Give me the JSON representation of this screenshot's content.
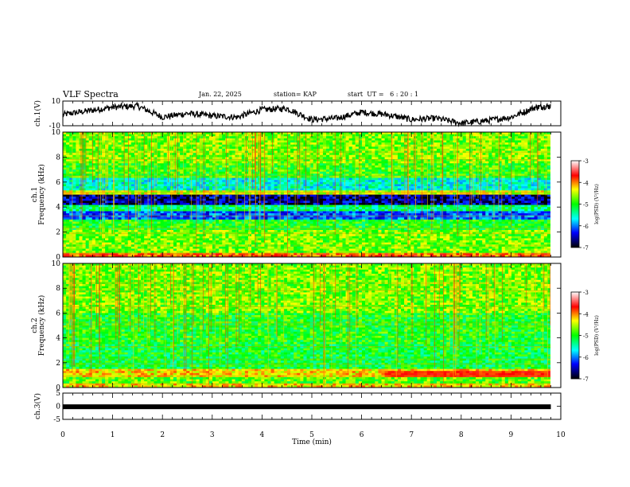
{
  "header": {
    "title": "VLF Spectra",
    "date": "Jan. 22, 2025",
    "station": "station= KAP",
    "start_ut": "start  UT =   6 : 20 : 1"
  },
  "colorbar": {
    "label": "log(PSD) (V²/Hz)",
    "ticks": [
      "-3",
      "-4",
      "-5",
      "-6",
      "-7"
    ],
    "colors": [
      "#ffffff",
      "#ff0000",
      "#ffff00",
      "#00ff00",
      "#00ffff",
      "#0000ff",
      "#000000"
    ]
  },
  "chart_data": [
    {
      "type": "line",
      "name": "ch1-waveform",
      "ylabel": "ch.1(V)",
      "ylim": [
        -10,
        10
      ],
      "yticks": [
        "10",
        "-10"
      ],
      "x": [
        0,
        0.5,
        1,
        1.5,
        2,
        2.5,
        3,
        3.5,
        4,
        4.5,
        5,
        5.5,
        6,
        6.5,
        7,
        7.5,
        8,
        8.5,
        9,
        9.5,
        9.8
      ],
      "values": [
        -1,
        2,
        5,
        6,
        -3,
        0,
        -2,
        -3,
        3,
        4,
        -5,
        -4,
        1,
        -1,
        -5,
        -4,
        -8,
        -6,
        -3,
        5,
        6
      ]
    },
    {
      "type": "heatmap",
      "name": "ch1-spectrogram",
      "ylabel": "ch.1 Frequency  (kHz)",
      "ylim": [
        0,
        10
      ],
      "yticks": [
        "0",
        "2",
        "4",
        "6",
        "8",
        "10"
      ],
      "bands": [
        {
          "from": 0,
          "to": 0.4,
          "level": -3.8
        },
        {
          "from": 0.4,
          "to": 2.2,
          "level": -4.7
        },
        {
          "from": 2.2,
          "to": 3.0,
          "level": -5.0
        },
        {
          "from": 3.0,
          "to": 3.6,
          "level": -6.2
        },
        {
          "from": 3.6,
          "to": 4.1,
          "level": -5.3
        },
        {
          "from": 4.1,
          "to": 5.0,
          "level": -6.7
        },
        {
          "from": 5.0,
          "to": 5.3,
          "level": -4.4
        },
        {
          "from": 5.3,
          "to": 6.3,
          "level": -5.6
        },
        {
          "from": 6.3,
          "to": 7.5,
          "level": -4.9
        },
        {
          "from": 7.5,
          "to": 10,
          "level": -4.7
        }
      ]
    },
    {
      "type": "heatmap",
      "name": "ch2-spectrogram",
      "ylabel": "ch.2 Frequency  (kHz)",
      "ylim": [
        0,
        10
      ],
      "yticks": [
        "0",
        "2",
        "4",
        "6",
        "8",
        "10"
      ],
      "bands": [
        {
          "from": 0,
          "to": 0.4,
          "level": -4.2
        },
        {
          "from": 0.4,
          "to": 0.9,
          "level": -4.8
        },
        {
          "from": 0.9,
          "to": 1.5,
          "level": -4.2
        },
        {
          "from": 1.5,
          "to": 3.5,
          "level": -5.1
        },
        {
          "from": 3.5,
          "to": 6.0,
          "level": -5.0
        },
        {
          "from": 6.0,
          "to": 10,
          "level": -4.7
        }
      ]
    },
    {
      "type": "line",
      "name": "ch3-waveform",
      "ylabel": "ch.3(V)",
      "ylim": [
        -5,
        5
      ],
      "yticks": [
        "5",
        "0",
        "-5"
      ],
      "x": [
        0,
        9.8
      ],
      "values": [
        -0.2,
        -0.2
      ]
    }
  ],
  "xaxis": {
    "label": "Time  (min)",
    "range": [
      0,
      10
    ],
    "ticks": [
      "0",
      "1",
      "2",
      "3",
      "4",
      "5",
      "6",
      "7",
      "8",
      "9",
      "10"
    ]
  }
}
